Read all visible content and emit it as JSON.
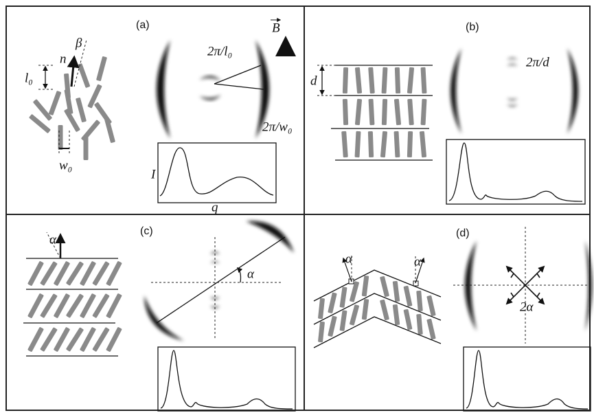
{
  "panels": [
    {
      "label": "(a)",
      "director": "n",
      "tilt": "β",
      "length": "l₀",
      "width": "w₀",
      "field": "B",
      "inner_ring": "2π/l₀",
      "outer_arc": "2π/w₀",
      "y_axis": "I",
      "x_axis": "q"
    },
    {
      "label": "(b)",
      "spacing": "d",
      "peak": "2π/d"
    },
    {
      "label": "(c)",
      "tilt_left": "α",
      "tilt_pattern": "α"
    },
    {
      "label": "(d)",
      "tilt_left": "α",
      "tilt_right": "α",
      "split": "2α"
    }
  ]
}
